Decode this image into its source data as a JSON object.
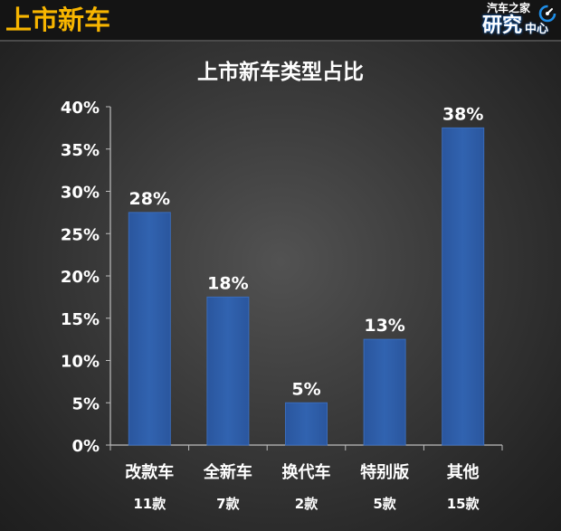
{
  "header": {
    "title": "上市新车"
  },
  "logo": {
    "line1": "汽车之家",
    "line2_big": "研究",
    "line2_small": "中心",
    "icon": "swirl-icon"
  },
  "colors": {
    "header_title": "#f7b500",
    "bar": "#2d5ea8",
    "bar_edge": "#3a6cbb",
    "text": "#ffffff",
    "axis": "#bdbdbd"
  },
  "chart_data": {
    "type": "bar",
    "title": "上市新车类型占比",
    "xlabel": "",
    "ylabel": "",
    "categories": [
      "改款车",
      "全新车",
      "换代车",
      "特别版",
      "其他"
    ],
    "category_counts": [
      "11款",
      "7款",
      "2款",
      "5款",
      "15款"
    ],
    "values": [
      27.5,
      17.5,
      5,
      12.5,
      37.5
    ],
    "data_labels": [
      "28%",
      "18%",
      "5%",
      "13%",
      "38%"
    ],
    "ylim": [
      0,
      40
    ],
    "ytick_values": [
      0,
      5,
      10,
      15,
      20,
      25,
      30,
      35,
      40
    ],
    "ytick_labels": [
      "0%",
      "5%",
      "10%",
      "15%",
      "20%",
      "25%",
      "30%",
      "35%",
      "40%"
    ],
    "grid": false,
    "legend": "none"
  }
}
